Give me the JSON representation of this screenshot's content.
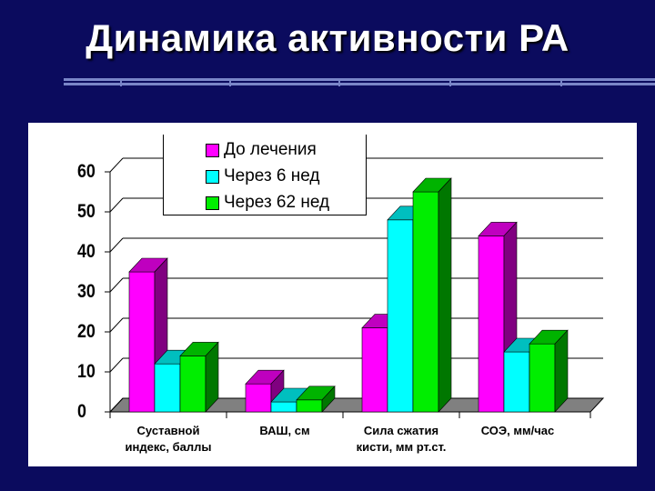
{
  "slide": {
    "title": "Динамика активности РА"
  },
  "chart_data": {
    "type": "bar",
    "title": "",
    "xlabel": "",
    "ylabel": "",
    "ylim": [
      0,
      60
    ],
    "yticks": [
      "0",
      "10",
      "20",
      "30",
      "40",
      "50",
      "60"
    ],
    "legend_position": "top-center",
    "grid": true,
    "categories": [
      [
        "Суставной",
        "индекс, баллы"
      ],
      [
        "ВАШ, см"
      ],
      [
        "Сила сжатия",
        "кисти, мм рт.ст."
      ],
      [
        "СОЭ, мм/час"
      ]
    ],
    "series": [
      {
        "name": "До лечения",
        "color": "#ff00ff",
        "values": [
          35,
          7,
          21,
          44
        ]
      },
      {
        "name": "Через 6 нед",
        "color": "#00ffff",
        "values": [
          12,
          2.5,
          48,
          15
        ]
      },
      {
        "name": "Через 62 нед",
        "color": "#00ee00",
        "values": [
          14,
          3,
          55,
          17
        ]
      }
    ]
  }
}
